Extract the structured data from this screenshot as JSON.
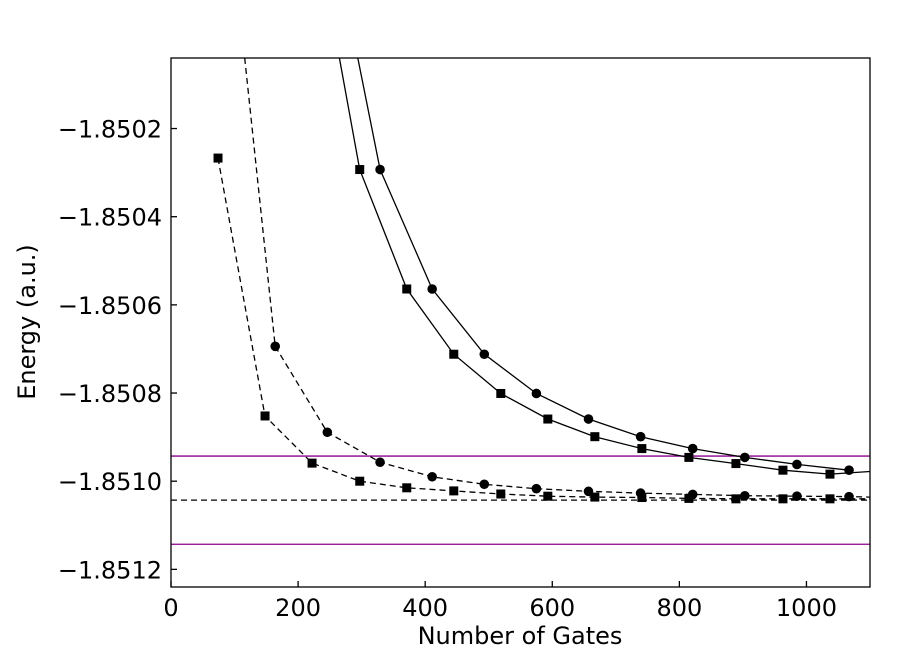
{
  "chart_data": {
    "type": "line",
    "title": "",
    "xlabel": "Number of Gates",
    "ylabel": "Energy (a.u.)",
    "xlim": [
      0,
      1100
    ],
    "ylim": [
      -1.85124,
      -1.85004
    ],
    "x_ticks": [
      0,
      200,
      400,
      600,
      800,
      1000
    ],
    "x_tick_labels": [
      "0",
      "200",
      "400",
      "600",
      "800",
      "1000"
    ],
    "y_ticks": [
      -1.8502,
      -1.8504,
      -1.8506,
      -1.8508,
      -1.851,
      -1.8512
    ],
    "y_tick_labels": [
      "−1.8502",
      "−1.8504",
      "−1.8506",
      "−1.8508",
      "−1.8510",
      "−1.8512"
    ],
    "grid": false,
    "legend": "none",
    "hlines": [
      {
        "y": -1.850943,
        "color": "#8b008b",
        "style": "solid"
      },
      {
        "y": -1.851143,
        "color": "#8b008b",
        "style": "solid"
      },
      {
        "y": -1.851043,
        "color": "#000000",
        "style": "dashed"
      }
    ],
    "series": [
      {
        "marker": "square",
        "line": "solid",
        "color": "#000000",
        "x": [
          297,
          371,
          445,
          519,
          593,
          667,
          741,
          815,
          889,
          963,
          1037
        ],
        "y": [
          -1.850293,
          -1.850564,
          -1.850712,
          -1.850801,
          -1.850859,
          -1.850899,
          -1.850926,
          -1.850946,
          -1.85096,
          -1.850975,
          -1.850984
        ],
        "extend_left": {
          "x": 265,
          "y": -1.85004
        },
        "extend_right": {
          "x": 1100,
          "y": -1.850978
        }
      },
      {
        "marker": "circle",
        "line": "solid",
        "color": "#000000",
        "x": [
          329,
          411,
          493,
          575,
          657,
          739,
          821,
          903,
          985,
          1067
        ],
        "y": [
          -1.850293,
          -1.850564,
          -1.850712,
          -1.850801,
          -1.850859,
          -1.850899,
          -1.850926,
          -1.850946,
          -1.850962,
          -1.850975
        ],
        "extend_left": {
          "x": 294,
          "y": -1.85004
        }
      },
      {
        "marker": "square",
        "line": "dashed",
        "color": "#000000",
        "x": [
          74,
          148,
          222,
          297,
          371,
          445,
          519,
          593,
          667,
          741,
          815,
          889,
          963,
          1037
        ],
        "y": [
          -1.850267,
          -1.850852,
          -1.850959,
          -1.851,
          -1.851015,
          -1.851022,
          -1.851029,
          -1.851034,
          -1.851036,
          -1.851037,
          -1.851039,
          -1.85104,
          -1.85104,
          -1.85104
        ],
        "extend_right": {
          "x": 1100,
          "y": -1.85104
        }
      },
      {
        "marker": "circle",
        "line": "dashed",
        "color": "#000000",
        "x": [
          164,
          246,
          329,
          411,
          493,
          575,
          657,
          739,
          821,
          903,
          985,
          1067
        ],
        "y": [
          -1.850694,
          -1.850889,
          -1.850957,
          -1.85099,
          -1.851007,
          -1.851017,
          -1.851023,
          -1.851027,
          -1.85103,
          -1.851033,
          -1.851034,
          -1.851035
        ],
        "extend_left": {
          "x": 116,
          "y": -1.85004
        },
        "extend_right": {
          "x": 1100,
          "y": -1.851036
        }
      }
    ]
  }
}
